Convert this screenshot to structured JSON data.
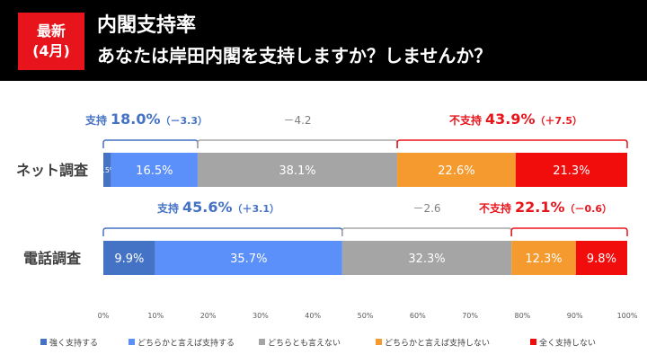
{
  "header": {
    "badge_line1": "最新",
    "badge_line2": "(4月)",
    "title": "内閣支持率",
    "subtitle": "あなたは岸田内閣を支持しますか？しませんか？"
  },
  "colors": {
    "strong_support": "#4472c4",
    "somewhat_support": "#5b8ff9",
    "neutral": "#a5a5a5",
    "somewhat_oppose": "#f59a2f",
    "strong_oppose": "#f20d0d",
    "support_label": "#4472c4",
    "oppose_label": "#e8141c",
    "gray_label": "#7f7f7f"
  },
  "chart_data": {
    "type": "bar",
    "orientation": "horizontal-stacked-100",
    "xlim": [
      0,
      100
    ],
    "ticks": [
      "0%",
      "10%",
      "20%",
      "30%",
      "40%",
      "50%",
      "60%",
      "70%",
      "80%",
      "90%",
      "100%"
    ],
    "categories": [
      "ネット調査",
      "電話調査"
    ],
    "series": [
      {
        "name": "強く支持する",
        "values": [
          1.5,
          9.9
        ],
        "labels": [
          "1.5%",
          "9.9%"
        ]
      },
      {
        "name": "どちらかと言えば支持する",
        "values": [
          16.5,
          35.7
        ],
        "labels": [
          "16.5%",
          "35.7%"
        ]
      },
      {
        "name": "どちらとも言えない",
        "values": [
          38.1,
          32.3
        ],
        "labels": [
          "38.1%",
          "32.3%"
        ]
      },
      {
        "name": "どちらかと言えば支持しない",
        "values": [
          22.6,
          12.3
        ],
        "labels": [
          "22.6%",
          "12.3%"
        ]
      },
      {
        "name": "全く支持しない",
        "values": [
          21.3,
          9.8
        ],
        "labels": [
          "21.3%",
          "9.8%"
        ]
      }
    ],
    "legend_position": "bottom",
    "summaries": [
      {
        "support": {
          "label": "支持",
          "value": "18.0%",
          "change": "（－3.3）"
        },
        "neutral_change": "－4.2",
        "oppose": {
          "label": "不支持",
          "value": "43.9%",
          "change": "（＋7.5）"
        }
      },
      {
        "support": {
          "label": "支持",
          "value": "45.6%",
          "change": "（＋3.1）"
        },
        "neutral_change": "－2.6",
        "oppose": {
          "label": "不支持",
          "value": "22.1%",
          "change": "（－0.6）"
        }
      }
    ]
  }
}
